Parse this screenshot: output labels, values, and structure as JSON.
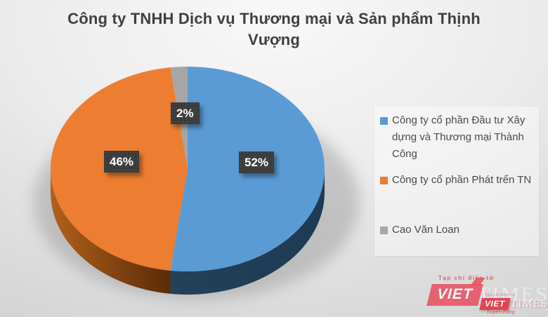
{
  "chart_data": {
    "type": "pie",
    "effect": "3d",
    "title": "Công ty TNHH Dịch vụ Thương mại và Sản phẩm Thịnh Vượng",
    "labels": [
      "Công ty cổ phần Đầu tư Xây dựng và Thương mại Thành Công",
      "Công ty cổ phần Phát trển TN",
      "Cao Văn Loan"
    ],
    "values": [
      52,
      46,
      2
    ],
    "display_labels": [
      "52%",
      "46%",
      "2%"
    ],
    "colors": [
      "#5B9BD5",
      "#ED7D31",
      "#A6A6A6"
    ],
    "side_colors": [
      [
        "#234158",
        "#1E3A55"
      ],
      [
        "#B2601C",
        "#5A2B07"
      ],
      [
        "#8C8C8C",
        "#7F7F7F"
      ]
    ],
    "start_angle": 0,
    "legend_position": "right",
    "label_style": "dark boxes with white bold text"
  },
  "watermark": {
    "tagline": "Tạp chí điện tử",
    "brand": "VIET",
    "times": "TIMES",
    "slogan": "Truyền thông",
    "red": "#E93F4F"
  }
}
